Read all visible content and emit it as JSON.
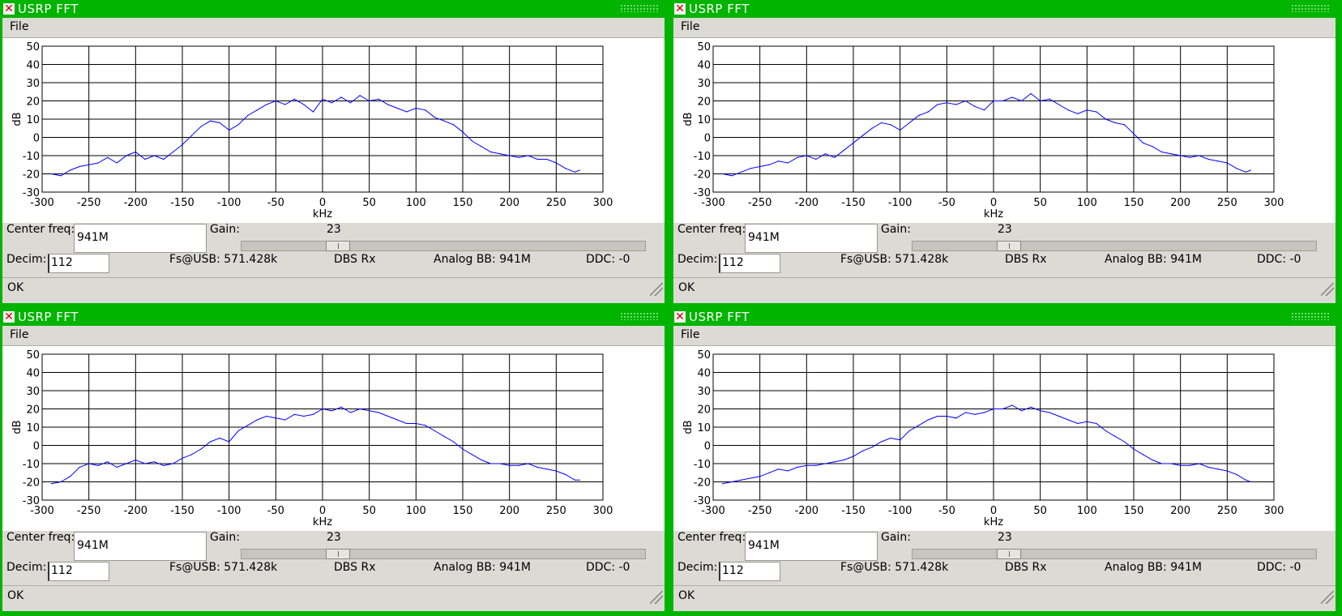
{
  "window_title": "USRP FFT",
  "menu": {
    "file_label": "File"
  },
  "controls": {
    "center_freq_label": "Center freq:",
    "center_freq_value": "941M",
    "gain_label": "Gain:",
    "gain_value": "23",
    "decim_label": "Decim:",
    "decim_value": "112",
    "fs_usb": "Fs@USB: 571.428k",
    "dbs_rx": "DBS Rx",
    "analog_bb": "Analog BB: 941M",
    "ddc": "DDC: -0"
  },
  "status_text": "OK",
  "chart_data": [
    {
      "type": "line",
      "xlabel": "kHz",
      "ylabel": "dB",
      "xlim": [
        -300,
        300
      ],
      "ylim": [
        -30,
        50
      ],
      "x_ticks": [
        -300,
        -250,
        -200,
        -150,
        -100,
        -50,
        0,
        50,
        100,
        150,
        200,
        250,
        300
      ],
      "y_ticks": [
        50,
        40,
        30,
        20,
        10,
        0,
        -10,
        -20,
        -30
      ],
      "grid": true,
      "line_color": "#0000ff",
      "series": [
        {
          "x": [
            -290,
            -280,
            -270,
            -260,
            -250,
            -240,
            -230,
            -220,
            -210,
            -200,
            -190,
            -180,
            -170,
            -160,
            -150,
            -140,
            -130,
            -120,
            -110,
            -100,
            -90,
            -80,
            -70,
            -60,
            -50,
            -40,
            -30,
            -20,
            -10,
            0,
            10,
            20,
            30,
            40,
            50,
            60,
            70,
            80,
            90,
            100,
            110,
            120,
            130,
            140,
            150,
            160,
            170,
            180,
            190,
            200,
            210,
            220,
            230,
            240,
            250,
            260,
            270,
            275
          ],
          "values": [
            -20,
            -21,
            -18,
            -16,
            -15,
            -14,
            -11,
            -14,
            -10,
            -8,
            -12,
            -10,
            -12,
            -8,
            -4,
            1,
            6,
            9,
            8,
            4,
            7,
            12,
            15,
            18,
            20,
            18,
            21,
            18,
            14,
            21,
            19,
            22,
            19,
            23,
            20,
            21,
            18,
            16,
            14,
            16,
            15,
            11,
            9,
            7,
            3,
            -2,
            -5,
            -8,
            -9,
            -10,
            -11,
            -10,
            -12,
            -12,
            -14,
            -17,
            -19,
            -18
          ]
        }
      ]
    },
    {
      "type": "line",
      "xlabel": "kHz",
      "ylabel": "dB",
      "xlim": [
        -300,
        300
      ],
      "ylim": [
        -30,
        50
      ],
      "x_ticks": [
        -300,
        -250,
        -200,
        -150,
        -100,
        -50,
        0,
        50,
        100,
        150,
        200,
        250,
        300
      ],
      "y_ticks": [
        50,
        40,
        30,
        20,
        10,
        0,
        -10,
        -20,
        -30
      ],
      "grid": true,
      "line_color": "#0000ff",
      "series": [
        {
          "x": [
            -290,
            -280,
            -270,
            -260,
            -250,
            -240,
            -230,
            -220,
            -210,
            -200,
            -190,
            -180,
            -170,
            -160,
            -150,
            -140,
            -130,
            -120,
            -110,
            -100,
            -90,
            -80,
            -70,
            -60,
            -50,
            -40,
            -30,
            -20,
            -10,
            0,
            10,
            20,
            30,
            40,
            50,
            60,
            70,
            80,
            90,
            100,
            110,
            120,
            130,
            140,
            150,
            160,
            170,
            180,
            190,
            200,
            210,
            220,
            230,
            240,
            250,
            260,
            270,
            275
          ],
          "values": [
            -20,
            -21,
            -19,
            -17,
            -16,
            -15,
            -13,
            -14,
            -11,
            -10,
            -12,
            -9,
            -11,
            -7,
            -3,
            1,
            5,
            8,
            7,
            4,
            8,
            12,
            14,
            18,
            19,
            18,
            20,
            17,
            15,
            20,
            20,
            22,
            20,
            24,
            20,
            21,
            18,
            15,
            13,
            15,
            14,
            10,
            8,
            7,
            2,
            -3,
            -5,
            -8,
            -9,
            -10,
            -11,
            -10,
            -12,
            -13,
            -14,
            -17,
            -19,
            -18
          ]
        }
      ]
    },
    {
      "type": "line",
      "xlabel": "kHz",
      "ylabel": "dB",
      "xlim": [
        -300,
        300
      ],
      "ylim": [
        -30,
        50
      ],
      "x_ticks": [
        -300,
        -250,
        -200,
        -150,
        -100,
        -50,
        0,
        50,
        100,
        150,
        200,
        250,
        300
      ],
      "y_ticks": [
        50,
        40,
        30,
        20,
        10,
        0,
        -10,
        -20,
        -30
      ],
      "grid": true,
      "line_color": "#0000ff",
      "series": [
        {
          "x": [
            -290,
            -280,
            -270,
            -260,
            -250,
            -240,
            -230,
            -220,
            -210,
            -200,
            -190,
            -180,
            -170,
            -160,
            -150,
            -140,
            -130,
            -120,
            -110,
            -100,
            -90,
            -80,
            -70,
            -60,
            -50,
            -40,
            -30,
            -20,
            -10,
            0,
            10,
            20,
            30,
            40,
            50,
            60,
            70,
            80,
            90,
            100,
            110,
            120,
            130,
            140,
            150,
            160,
            170,
            180,
            190,
            200,
            210,
            220,
            230,
            240,
            250,
            260,
            270,
            275
          ],
          "values": [
            -21,
            -20,
            -17,
            -12,
            -10,
            -11,
            -9,
            -12,
            -10,
            -8,
            -10,
            -9,
            -11,
            -10,
            -7,
            -5,
            -2,
            2,
            4,
            2,
            8,
            11,
            14,
            16,
            15,
            14,
            17,
            16,
            17,
            20,
            19,
            21,
            18,
            20,
            19,
            18,
            16,
            14,
            12,
            12,
            11,
            8,
            5,
            2,
            -2,
            -5,
            -8,
            -10,
            -10,
            -11,
            -11,
            -10,
            -12,
            -13,
            -14,
            -16,
            -19,
            -19
          ]
        }
      ]
    },
    {
      "type": "line",
      "xlabel": "kHz",
      "ylabel": "dB",
      "xlim": [
        -300,
        300
      ],
      "ylim": [
        -30,
        50
      ],
      "x_ticks": [
        -300,
        -250,
        -200,
        -150,
        -100,
        -50,
        0,
        50,
        100,
        150,
        200,
        250,
        300
      ],
      "y_ticks": [
        50,
        40,
        30,
        20,
        10,
        0,
        -10,
        -20,
        -30
      ],
      "grid": true,
      "line_color": "#0000ff",
      "series": [
        {
          "x": [
            -290,
            -280,
            -270,
            -260,
            -250,
            -240,
            -230,
            -220,
            -210,
            -200,
            -190,
            -180,
            -170,
            -160,
            -150,
            -140,
            -130,
            -120,
            -110,
            -100,
            -90,
            -80,
            -70,
            -60,
            -50,
            -40,
            -30,
            -20,
            -10,
            0,
            10,
            20,
            30,
            40,
            50,
            60,
            70,
            80,
            90,
            100,
            110,
            120,
            130,
            140,
            150,
            160,
            170,
            180,
            190,
            200,
            210,
            220,
            230,
            240,
            250,
            260,
            270,
            275
          ],
          "values": [
            -21,
            -20,
            -19,
            -18,
            -17,
            -15,
            -13,
            -14,
            -12,
            -11,
            -11,
            -10,
            -9,
            -8,
            -6,
            -3,
            -1,
            2,
            4,
            3,
            8,
            11,
            14,
            16,
            16,
            15,
            18,
            17,
            18,
            20,
            20,
            22,
            19,
            21,
            19,
            18,
            16,
            14,
            12,
            13,
            12,
            8,
            5,
            2,
            -2,
            -5,
            -8,
            -10,
            -10,
            -11,
            -11,
            -10,
            -12,
            -13,
            -14,
            -16,
            -19,
            -20
          ]
        }
      ]
    }
  ]
}
